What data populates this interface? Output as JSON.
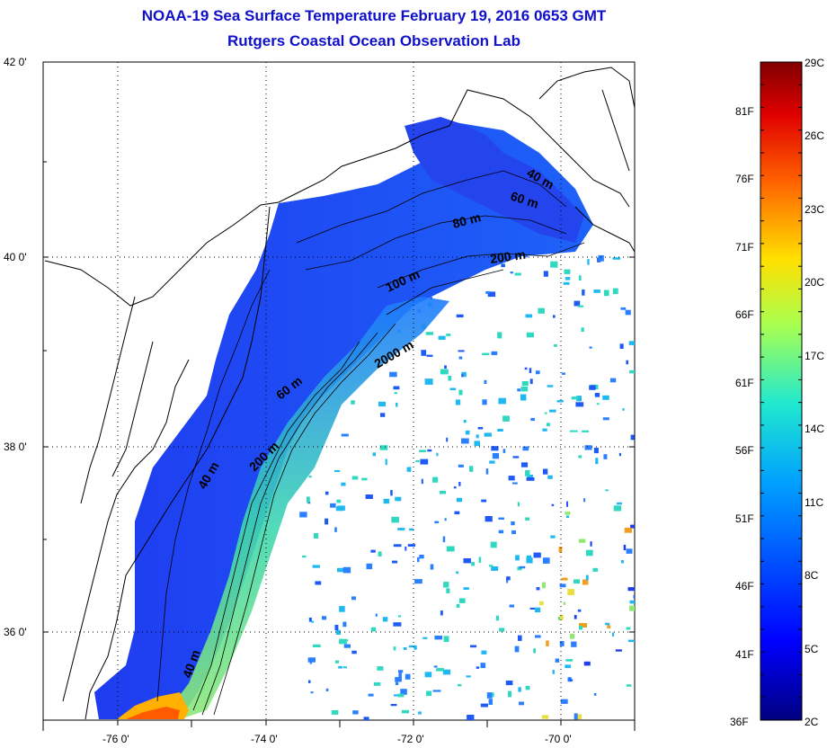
{
  "title": "NOAA-19 Sea Surface Temperature February 19, 2016 0653 GMT",
  "subtitle": "Rutgers Coastal Ocean Observation Lab",
  "map": {
    "lat_ticks": [
      "42 0'",
      "40 0'",
      "38 0'",
      "36 0'"
    ],
    "lon_ticks": [
      "-76 0'",
      "-74 0'",
      "-72 0'",
      "-70 0'"
    ],
    "grid": "dotted",
    "contour_labels": [
      "40 m",
      "60 m",
      "80 m",
      "200 m",
      "100 m",
      "2000 m",
      "60 m",
      "200 m",
      "40 m",
      "40 m"
    ]
  },
  "colorbar": {
    "fahrenheit_labels": [
      "81F",
      "76F",
      "71F",
      "66F",
      "61F",
      "56F",
      "51F",
      "46F",
      "41F",
      "36F"
    ],
    "celsius_labels": [
      "29C",
      "26C",
      "23C",
      "20C",
      "17C",
      "14C",
      "11C",
      "8C",
      "5C",
      "2C"
    ],
    "colors": [
      "#7f0000",
      "#e00000",
      "#ff6a00",
      "#ffd400",
      "#b8ff46",
      "#46ffb8",
      "#00c8ff",
      "#0060ff",
      "#0000e0",
      "#000080"
    ]
  },
  "land_color": "#ffffff",
  "no_data_color": "#ffffff"
}
